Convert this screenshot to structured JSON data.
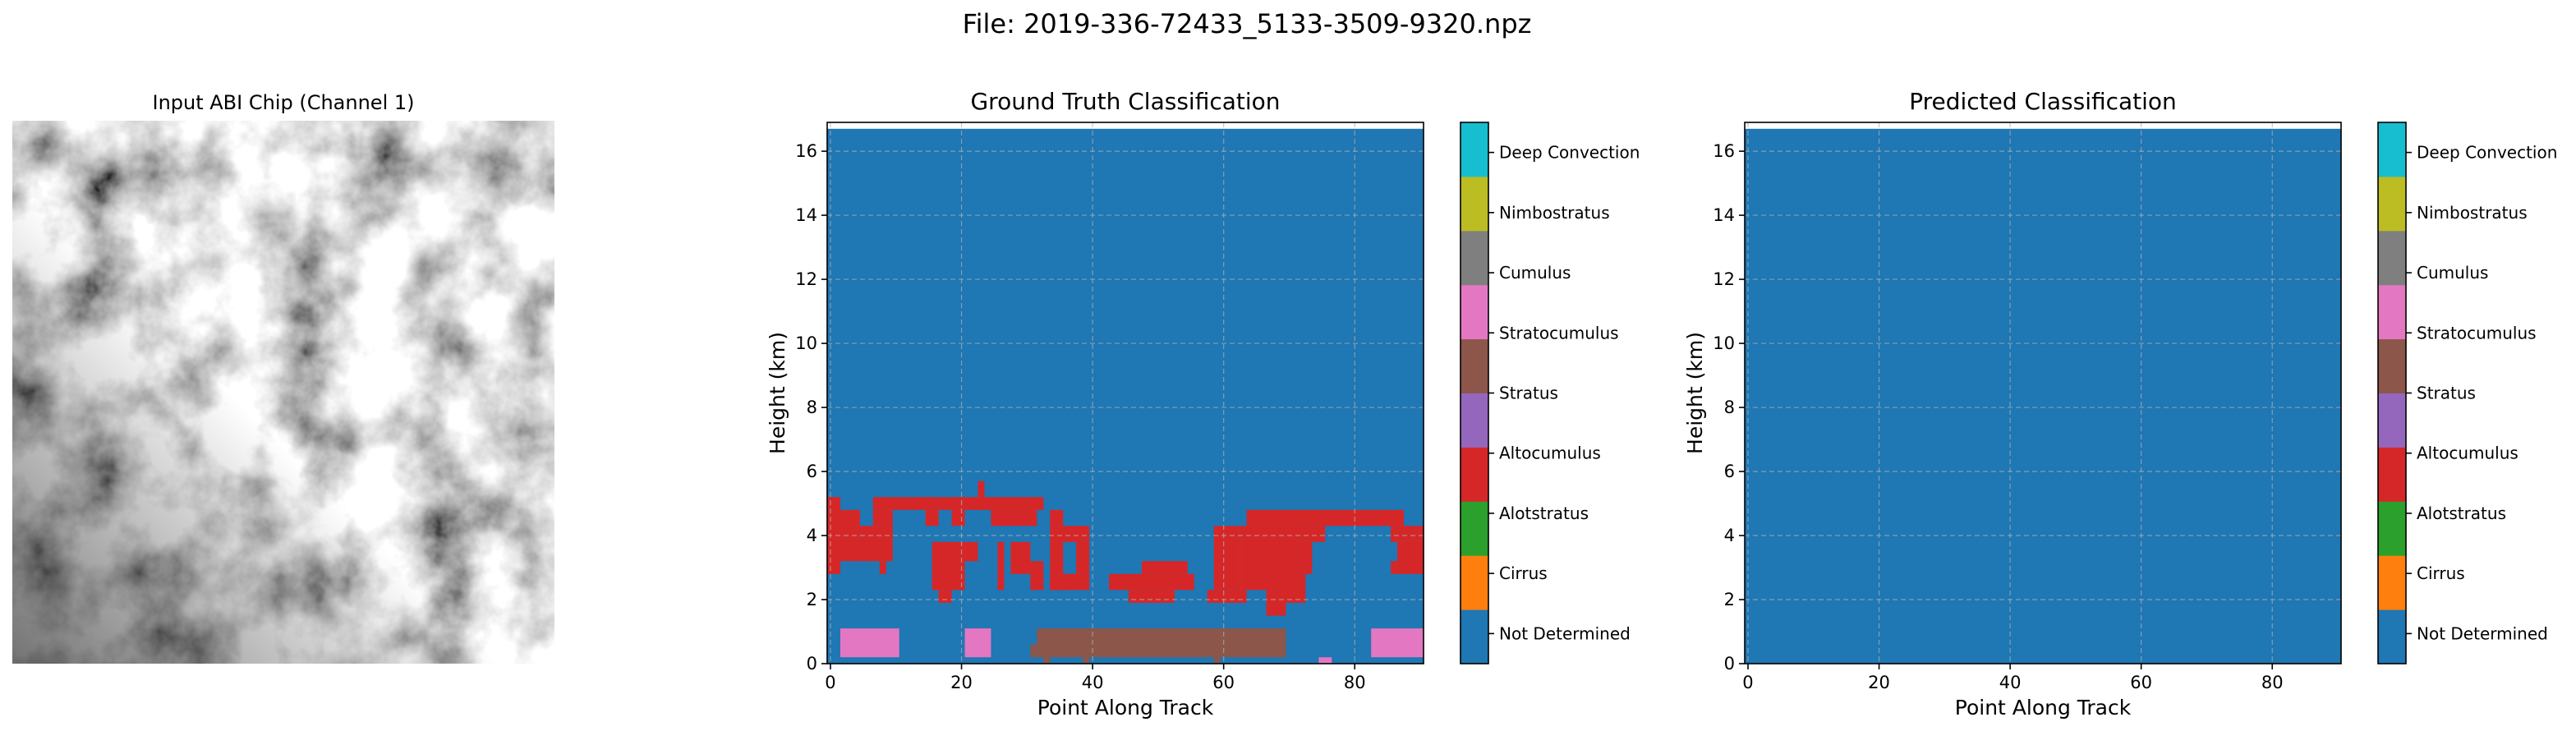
{
  "figure": {
    "suptitle": "File: 2019-336-72433_5133-3509-9320.npz"
  },
  "chip": {
    "title": "Input ABI Chip (Channel 1)"
  },
  "classes": [
    "Not Determined",
    "Cirrus",
    "Alotstratus",
    "Altocumulus",
    "Stratus",
    "Stratocumulus",
    "Cumulus",
    "Nimbostratus",
    "Deep Convection"
  ],
  "class_colors": [
    "#1f77b4",
    "#ff7f0e",
    "#2ca02c",
    "#d62728",
    "#9467bd",
    "#8c564b",
    "#e377c2",
    "#7f7f7f",
    "#bcbd22",
    "#17becf"
  ],
  "chart_data": [
    {
      "type": "heatmap",
      "title": "Ground Truth Classification",
      "xlabel": "Point Along Track",
      "ylabel": "Height (km)",
      "xlim": [
        -0.5,
        90.5
      ],
      "ylim": [
        0,
        16.9
      ],
      "xticks": [
        0,
        20,
        40,
        60,
        80
      ],
      "yticks": [
        0,
        2,
        4,
        6,
        8,
        10,
        12,
        14,
        16
      ],
      "grid": true,
      "background_class": "Not Determined",
      "top_of_data_km": 16.7,
      "regions": [
        {
          "cls": "Altocumulus",
          "x0": -0.5,
          "x1": 1.5,
          "y0": 2.8,
          "y1": 5.2
        },
        {
          "cls": "Altocumulus",
          "x0": 1.5,
          "x1": 4.5,
          "y0": 3.2,
          "y1": 4.8
        },
        {
          "cls": "Altocumulus",
          "x0": 4.5,
          "x1": 9.5,
          "y0": 3.2,
          "y1": 4.3
        },
        {
          "cls": "Altocumulus",
          "x0": 6.5,
          "x1": 9.5,
          "y0": 4.3,
          "y1": 4.8
        },
        {
          "cls": "Altocumulus",
          "x0": 6.5,
          "x1": 16.5,
          "y0": 4.8,
          "y1": 5.2
        },
        {
          "cls": "Altocumulus",
          "x0": 7.5,
          "x1": 8.5,
          "y0": 2.8,
          "y1": 3.2
        },
        {
          "cls": "Altocumulus",
          "x0": 14.5,
          "x1": 16.5,
          "y0": 4.3,
          "y1": 4.8
        },
        {
          "cls": "Altocumulus",
          "x0": 16.5,
          "x1": 32.5,
          "y0": 4.8,
          "y1": 5.2
        },
        {
          "cls": "Altocumulus",
          "x0": 22.5,
          "x1": 23.5,
          "y0": 5.2,
          "y1": 5.7
        },
        {
          "cls": "Altocumulus",
          "x0": 18.5,
          "x1": 20.5,
          "y0": 4.3,
          "y1": 4.8
        },
        {
          "cls": "Altocumulus",
          "x0": 24.5,
          "x1": 31.5,
          "y0": 4.3,
          "y1": 4.8
        },
        {
          "cls": "Altocumulus",
          "x0": 15.5,
          "x1": 20.5,
          "y0": 2.3,
          "y1": 3.8
        },
        {
          "cls": "Altocumulus",
          "x0": 16.5,
          "x1": 18.5,
          "y0": 1.9,
          "y1": 2.3
        },
        {
          "cls": "Altocumulus",
          "x0": 20.5,
          "x1": 22.5,
          "y0": 3.2,
          "y1": 3.8
        },
        {
          "cls": "Altocumulus",
          "x0": 25.5,
          "x1": 26.5,
          "y0": 2.3,
          "y1": 3.8
        },
        {
          "cls": "Altocumulus",
          "x0": 27.5,
          "x1": 30.5,
          "y0": 2.8,
          "y1": 3.8
        },
        {
          "cls": "Altocumulus",
          "x0": 30.5,
          "x1": 32.5,
          "y0": 2.3,
          "y1": 3.2
        },
        {
          "cls": "Altocumulus",
          "x0": 33.5,
          "x1": 35.5,
          "y0": 2.3,
          "y1": 3.8
        },
        {
          "cls": "Altocumulus",
          "x0": 37.5,
          "x1": 39.5,
          "y0": 2.8,
          "y1": 3.8
        },
        {
          "cls": "Altocumulus",
          "x0": 33.5,
          "x1": 39.5,
          "y0": 2.3,
          "y1": 2.8
        },
        {
          "cls": "Altocumulus",
          "x0": 33.5,
          "x1": 37.5,
          "y0": 2.3,
          "y1": 2.8
        },
        {
          "cls": "Altocumulus",
          "x0": 33.5,
          "x1": 39.5,
          "y0": 3.8,
          "y1": 4.3
        },
        {
          "cls": "Altocumulus",
          "x0": 33.5,
          "x1": 35.5,
          "y0": 4.3,
          "y1": 4.8
        },
        {
          "cls": "Altocumulus",
          "x0": 42.5,
          "x1": 46.5,
          "y0": 2.3,
          "y1": 2.8
        },
        {
          "cls": "Altocumulus",
          "x0": 45.5,
          "x1": 52.5,
          "y0": 1.9,
          "y1": 2.3
        },
        {
          "cls": "Altocumulus",
          "x0": 46.5,
          "x1": 55.5,
          "y0": 2.3,
          "y1": 2.8
        },
        {
          "cls": "Altocumulus",
          "x0": 47.5,
          "x1": 54.5,
          "y0": 2.8,
          "y1": 3.2
        },
        {
          "cls": "Altocumulus",
          "x0": 58.5,
          "x1": 62.5,
          "y0": 2.3,
          "y1": 4.3
        },
        {
          "cls": "Altocumulus",
          "x0": 57.5,
          "x1": 63.5,
          "y0": 1.9,
          "y1": 2.3
        },
        {
          "cls": "Altocumulus",
          "x0": 62.5,
          "x1": 71.5,
          "y0": 2.3,
          "y1": 4.3
        },
        {
          "cls": "Altocumulus",
          "x0": 63.5,
          "x1": 87.5,
          "y0": 4.3,
          "y1": 4.8
        },
        {
          "cls": "Altocumulus",
          "x0": 63.5,
          "x1": 75.5,
          "y0": 3.8,
          "y1": 4.3
        },
        {
          "cls": "Altocumulus",
          "x0": 66.5,
          "x1": 69.5,
          "y0": 1.5,
          "y1": 2.3
        },
        {
          "cls": "Altocumulus",
          "x0": 69.5,
          "x1": 72.5,
          "y0": 1.9,
          "y1": 2.8
        },
        {
          "cls": "Altocumulus",
          "x0": 71.5,
          "x1": 73.5,
          "y0": 2.8,
          "y1": 3.8
        },
        {
          "cls": "Altocumulus",
          "x0": 85.5,
          "x1": 90.5,
          "y0": 3.8,
          "y1": 4.3
        },
        {
          "cls": "Altocumulus",
          "x0": 86.5,
          "x1": 90.5,
          "y0": 2.8,
          "y1": 3.8
        },
        {
          "cls": "Altocumulus",
          "x0": 85.5,
          "x1": 86.5,
          "y0": 2.8,
          "y1": 3.2
        },
        {
          "cls": "Cumulus",
          "x0": 1.5,
          "x1": 10.5,
          "y0": 0.2,
          "y1": 1.1
        },
        {
          "cls": "Cumulus",
          "x0": 20.5,
          "x1": 24.5,
          "y0": 0.2,
          "y1": 1.1
        },
        {
          "cls": "Cumulus",
          "x0": 74.5,
          "x1": 76.5,
          "y0": 0.0,
          "y1": 0.2
        },
        {
          "cls": "Cumulus",
          "x0": 82.5,
          "x1": 90.5,
          "y0": 0.2,
          "y1": 1.1
        },
        {
          "cls": "Stratocumulus",
          "x0": 31.5,
          "x1": 69.5,
          "y0": 0.2,
          "y1": 1.1
        },
        {
          "cls": "Stratocumulus",
          "x0": 30.5,
          "x1": 31.5,
          "y0": 0.2,
          "y1": 0.6
        },
        {
          "cls": "Stratocumulus",
          "x0": 32.5,
          "x1": 33.5,
          "y0": 0.0,
          "y1": 0.2
        },
        {
          "cls": "Stratocumulus",
          "x0": 38.5,
          "x1": 39.5,
          "y0": 0.0,
          "y1": 0.2
        },
        {
          "cls": "Stratocumulus",
          "x0": 58.5,
          "x1": 59.5,
          "y0": 0.0,
          "y1": 0.2
        }
      ]
    },
    {
      "type": "heatmap",
      "title": "Predicted Classification",
      "xlabel": "Point Along Track",
      "ylabel": "Height (km)",
      "xlim": [
        -0.5,
        90.5
      ],
      "ylim": [
        0,
        16.9
      ],
      "xticks": [
        0,
        20,
        40,
        60,
        80
      ],
      "yticks": [
        0,
        2,
        4,
        6,
        8,
        10,
        12,
        14,
        16
      ],
      "grid": true,
      "background_class": "Not Determined",
      "top_of_data_km": 16.7,
      "regions": []
    }
  ]
}
